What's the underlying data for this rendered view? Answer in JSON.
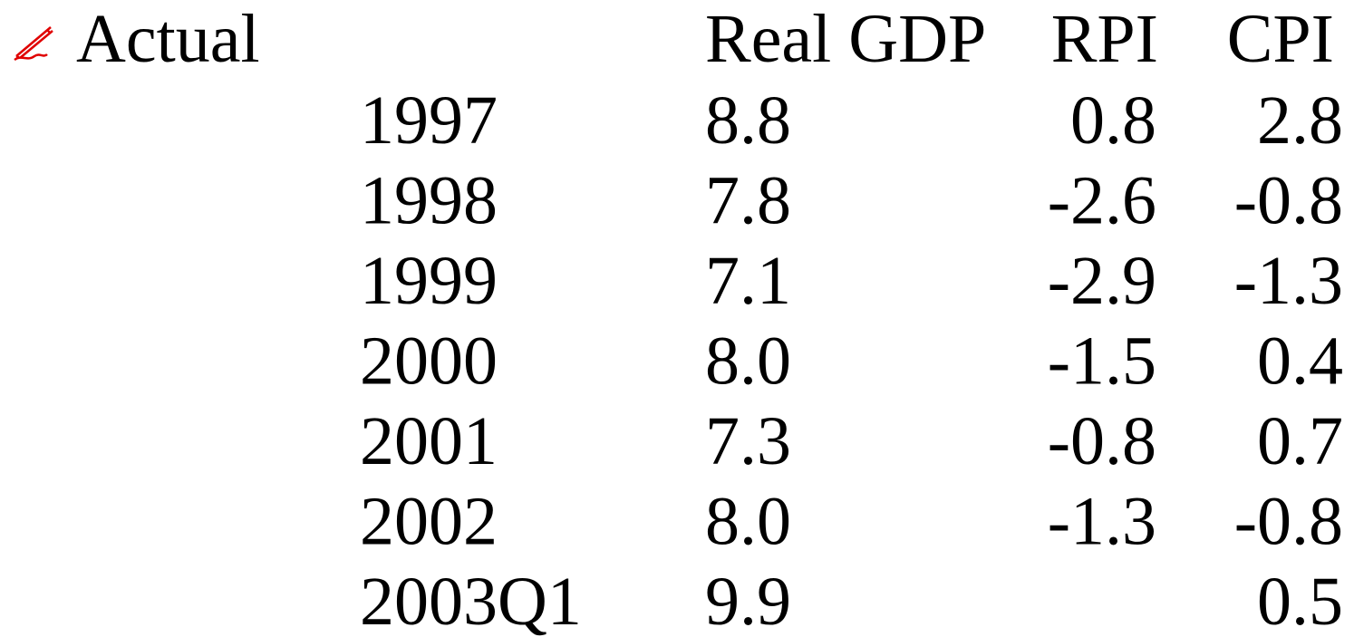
{
  "label": "Actual",
  "table": {
    "columns": [
      "Real GDP",
      "RPI",
      "CPI"
    ],
    "rows": [
      [
        "1997",
        "8.8",
        "0.8",
        "2.8"
      ],
      [
        "1998",
        "7.8",
        "-2.6",
        "-0.8"
      ],
      [
        "1999",
        "7.1",
        "-2.9",
        "-1.3"
      ],
      [
        "2000",
        "8.0",
        "-1.5",
        "0.4"
      ],
      [
        "2001",
        "7.3",
        "-0.8",
        "0.7"
      ],
      [
        "2002",
        "8.0",
        "-1.3",
        "-0.8"
      ],
      [
        "2003Q1",
        "9.9",
        null,
        "0.5"
      ]
    ]
  }
}
